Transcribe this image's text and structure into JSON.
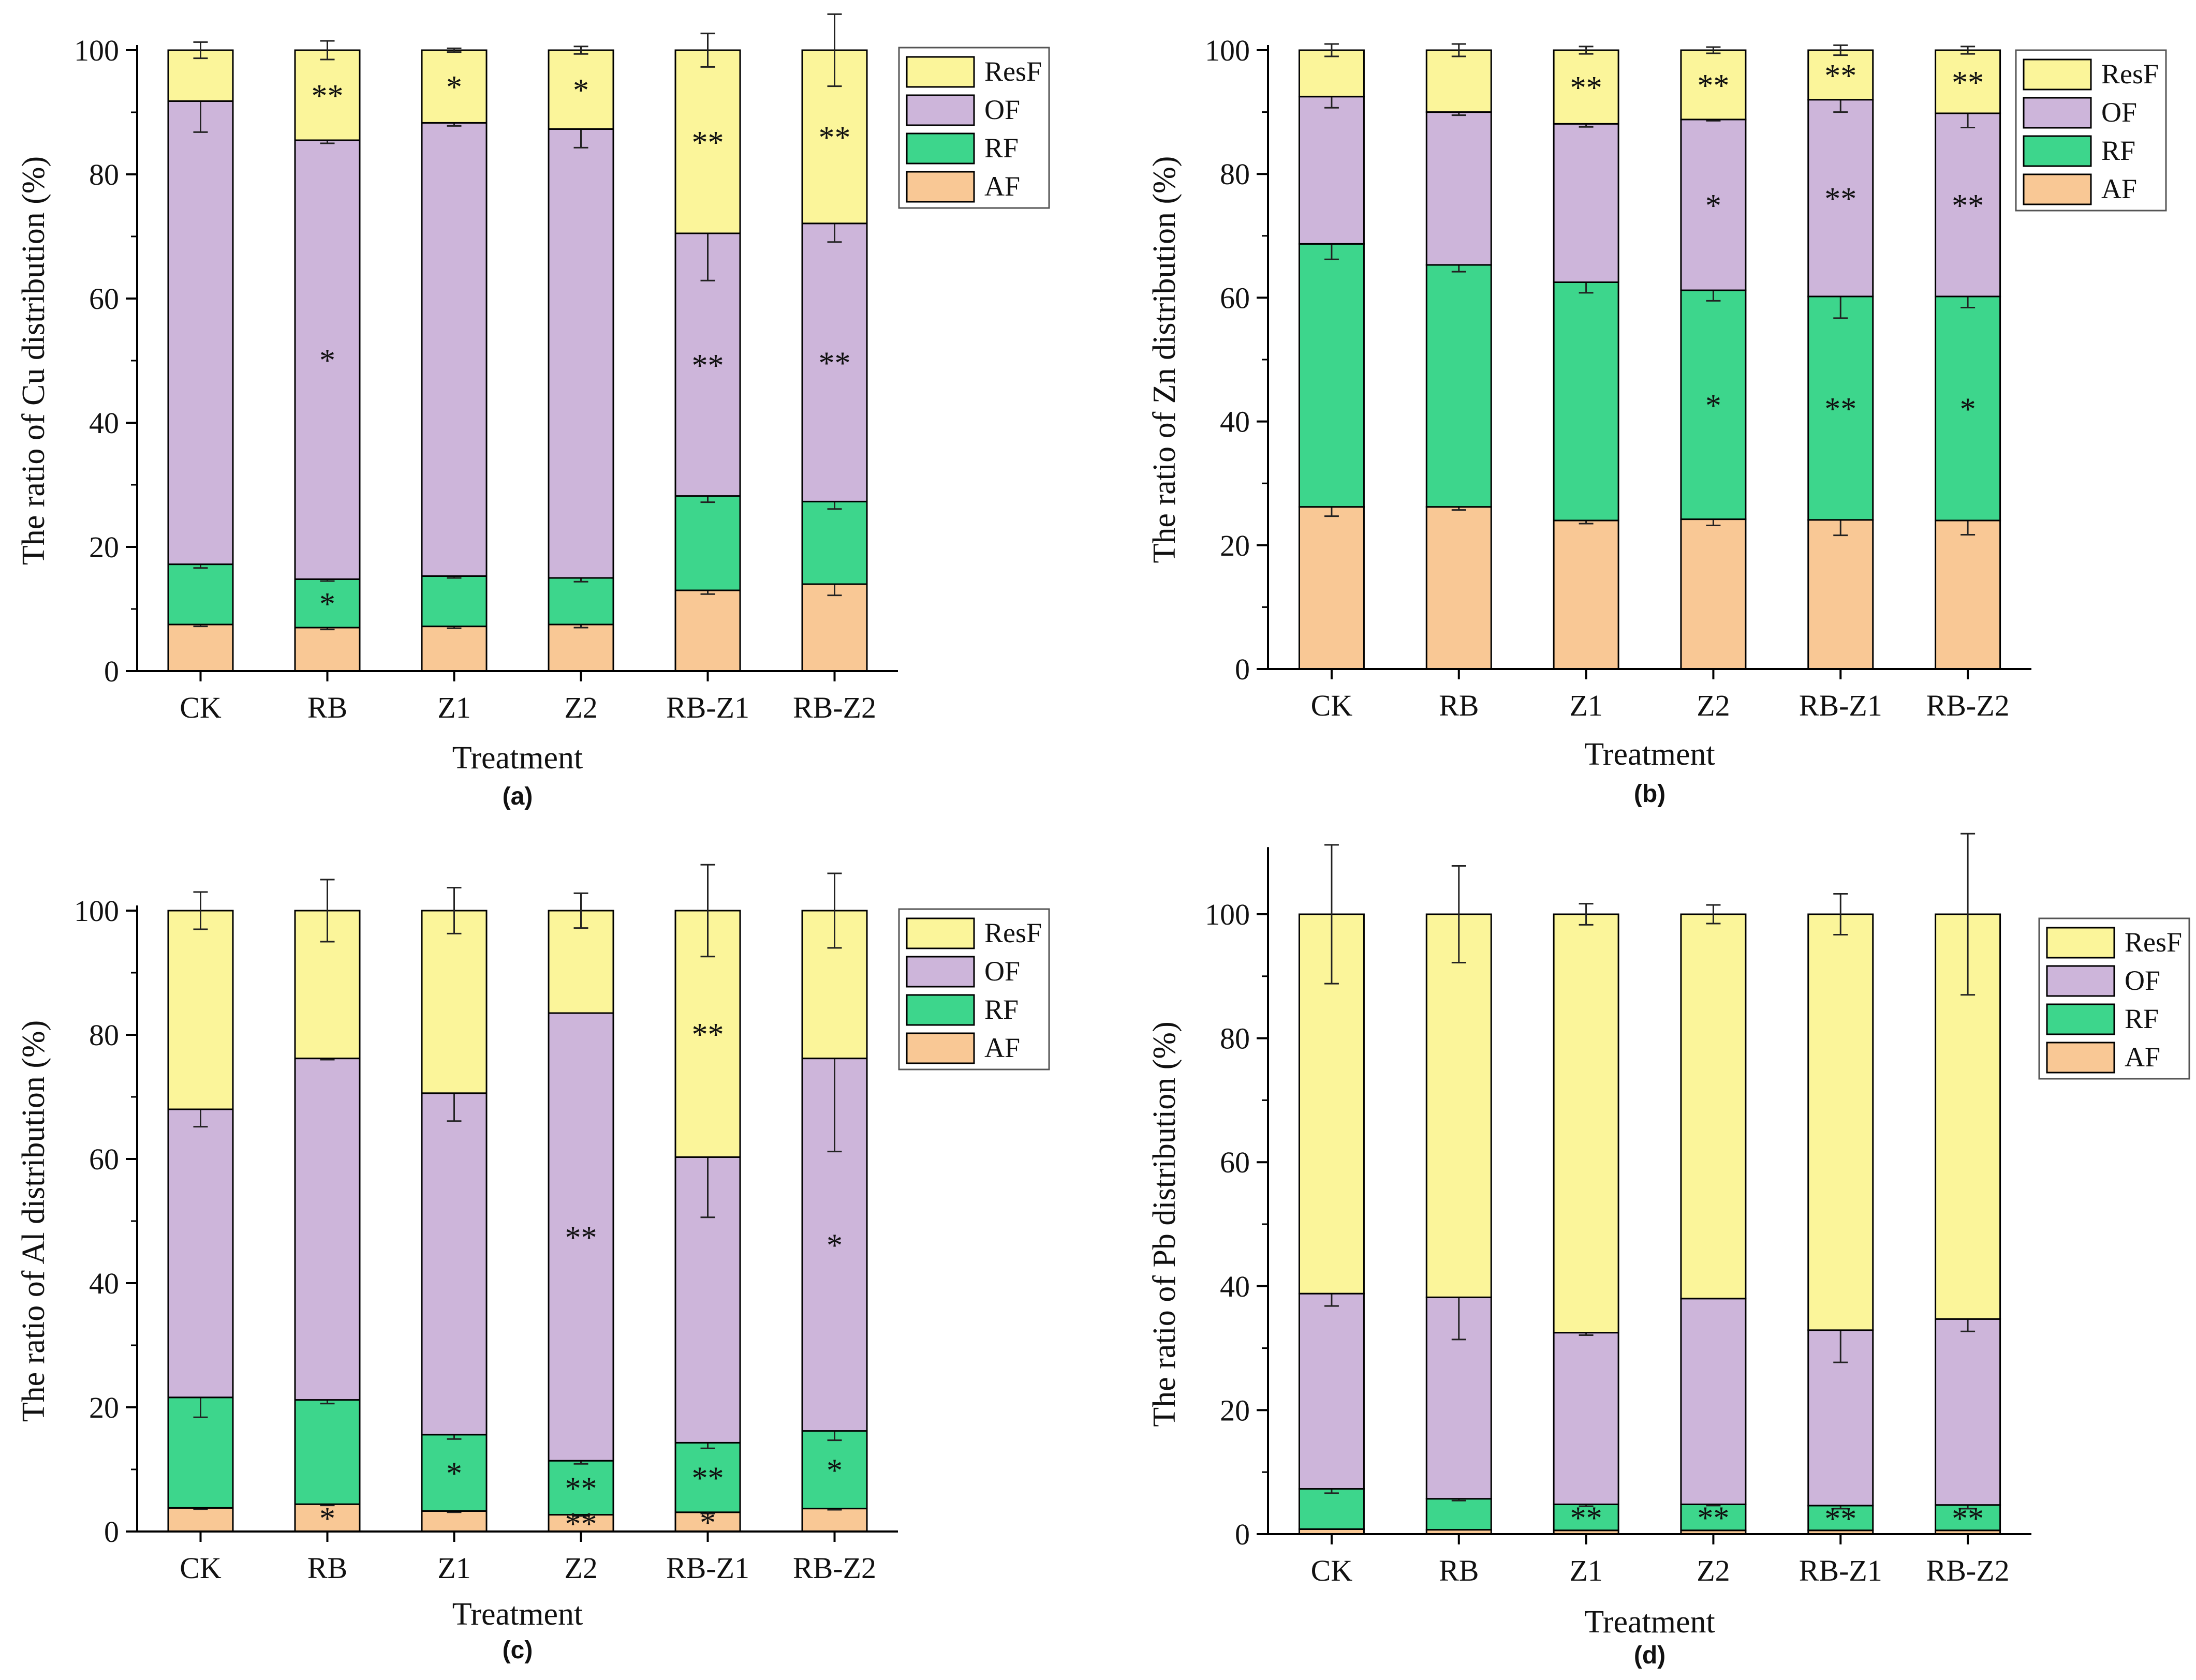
{
  "figure": {
    "type": "stacked-bar-panels",
    "categories": [
      "CK",
      "RB",
      "Z1",
      "Z2",
      "RB-Z1",
      "RB-Z2"
    ],
    "xlabel": "Treatment",
    "legend": [
      "ResF",
      "OF",
      "RF",
      "AF"
    ],
    "colors": {
      "AF": "#f9c895",
      "RF": "#3dd68c",
      "OF": "#cdb5da",
      "ResF": "#fbf59a",
      "axis": "#000000",
      "star_red": "#c0392b"
    }
  },
  "chart_data": [
    {
      "type": "bar",
      "stacked": true,
      "panel": "(a)",
      "ylabel": "The ratio of Cu distribution (%)",
      "xlabel": "Treatment",
      "ylim": [
        0,
        100
      ],
      "yticks": [
        "0",
        "20",
        "40",
        "60",
        "80",
        "100"
      ],
      "categories": [
        "CK",
        "RB",
        "Z1",
        "Z2",
        "RB-Z1",
        "RB-Z2"
      ],
      "series": [
        {
          "name": "AF",
          "values": [
            7.5,
            7.0,
            7.2,
            7.5,
            13.0,
            14.0
          ],
          "errors": [
            0.3,
            0.3,
            0.3,
            0.5,
            0.6,
            1.8
          ]
        },
        {
          "name": "RF",
          "values": [
            9.7,
            7.8,
            8.1,
            7.5,
            15.2,
            13.3
          ],
          "errors": [
            0.6,
            0.3,
            0.3,
            0.6,
            1.0,
            1.2
          ]
        },
        {
          "name": "OF",
          "values": [
            74.6,
            70.7,
            73.0,
            72.3,
            42.3,
            44.8
          ],
          "errors": [
            5.0,
            0.5,
            0.5,
            3.0,
            7.6,
            3.0
          ]
        },
        {
          "name": "ResF",
          "values": [
            8.2,
            14.5,
            11.7,
            12.7,
            29.5,
            27.9
          ],
          "errors": [
            1.3,
            1.5,
            0.3,
            0.6,
            2.7,
            5.8
          ]
        }
      ],
      "annotations": [
        {
          "cat": "RB",
          "series": "RF",
          "text": "*",
          "color": "black"
        },
        {
          "cat": "RB",
          "series": "OF",
          "text": "*",
          "color": "black"
        },
        {
          "cat": "RB",
          "series": "ResF",
          "text": "**",
          "color": "black"
        },
        {
          "cat": "Z1",
          "series": "ResF",
          "text": "*",
          "color": "black"
        },
        {
          "cat": "Z2",
          "series": "ResF",
          "text": "*",
          "color": "black"
        },
        {
          "cat": "RB-Z1",
          "series": "OF",
          "text": "**",
          "color": "black"
        },
        {
          "cat": "RB-Z1",
          "series": "ResF",
          "text": "**",
          "color": "black"
        },
        {
          "cat": "RB-Z2",
          "series": "OF",
          "text": "**",
          "color": "black"
        },
        {
          "cat": "RB-Z2",
          "series": "ResF",
          "text": "**",
          "color": "black"
        }
      ]
    },
    {
      "type": "bar",
      "stacked": true,
      "panel": "(b)",
      "ylabel": "The ratio of Zn distribution (%)",
      "xlabel": "Treatment",
      "ylim": [
        0,
        100
      ],
      "yticks": [
        "0",
        "20",
        "40",
        "60",
        "80",
        "100"
      ],
      "categories": [
        "CK",
        "RB",
        "Z1",
        "Z2",
        "RB-Z1",
        "RB-Z2"
      ],
      "series": [
        {
          "name": "AF",
          "values": [
            26.2,
            26.2,
            24.0,
            24.2,
            24.1,
            24.0
          ],
          "errors": [
            1.5,
            0.5,
            0.5,
            1.0,
            2.5,
            2.3
          ]
        },
        {
          "name": "RF",
          "values": [
            42.5,
            39.1,
            38.5,
            37.0,
            36.1,
            36.2
          ],
          "errors": [
            2.5,
            1.1,
            1.7,
            1.7,
            3.5,
            1.8
          ]
        },
        {
          "name": "OF",
          "values": [
            23.8,
            24.7,
            25.6,
            27.6,
            31.8,
            29.6
          ],
          "errors": [
            1.8,
            0.5,
            0.5,
            0.2,
            2.0,
            2.3
          ]
        },
        {
          "name": "ResF",
          "values": [
            7.5,
            10.0,
            11.9,
            11.2,
            8.0,
            10.2
          ],
          "errors": [
            1.0,
            1.0,
            0.6,
            0.5,
            0.8,
            0.6
          ]
        }
      ],
      "annotations": [
        {
          "cat": "Z1",
          "series": "ResF",
          "text": "**",
          "color": "black"
        },
        {
          "cat": "Z2",
          "series": "ResF",
          "text": "**",
          "color": "black"
        },
        {
          "cat": "Z2",
          "series": "OF",
          "text": "*",
          "color": "black"
        },
        {
          "cat": "Z2",
          "series": "RF",
          "text": "*",
          "color": "black"
        },
        {
          "cat": "RB-Z1",
          "series": "ResF",
          "text": "**",
          "color": "black"
        },
        {
          "cat": "RB-Z1",
          "series": "OF",
          "text": "**",
          "color": "black"
        },
        {
          "cat": "RB-Z1",
          "series": "RF",
          "text": "**",
          "color": "black"
        },
        {
          "cat": "RB-Z2",
          "series": "ResF",
          "text": "**",
          "color": "black"
        },
        {
          "cat": "RB-Z2",
          "series": "OF",
          "text": "**",
          "color": "black"
        },
        {
          "cat": "RB-Z2",
          "series": "RF",
          "text": "*",
          "color": "black"
        }
      ]
    },
    {
      "type": "bar",
      "stacked": true,
      "panel": "(c)",
      "ylabel": "The ratio of Al distribution (%)",
      "xlabel": "Treatment",
      "ylim": [
        0,
        100
      ],
      "yticks": [
        "0",
        "20",
        "40",
        "60",
        "80",
        "100"
      ],
      "categories": [
        "CK",
        "RB",
        "Z1",
        "Z2",
        "RB-Z1",
        "RB-Z2"
      ],
      "series": [
        {
          "name": "AF",
          "values": [
            3.8,
            4.4,
            3.3,
            2.7,
            3.1,
            3.7
          ],
          "errors": [
            0.2,
            0.2,
            0.2,
            0.2,
            0.2,
            0.2
          ]
        },
        {
          "name": "RF",
          "values": [
            17.8,
            16.8,
            12.3,
            8.7,
            11.2,
            12.5
          ],
          "errors": [
            3.2,
            0.6,
            0.7,
            0.5,
            0.9,
            1.5
          ]
        },
        {
          "name": "OF",
          "values": [
            46.4,
            55.0,
            55.0,
            72.1,
            46.0,
            60.0
          ],
          "errors": [
            2.8,
            0.2,
            4.5,
            0.0,
            9.7,
            15.0
          ]
        },
        {
          "name": "ResF",
          "values": [
            32.0,
            23.8,
            29.4,
            16.5,
            39.7,
            23.8
          ],
          "errors": [
            3.0,
            5.0,
            3.7,
            2.8,
            7.4,
            6.0
          ]
        }
      ],
      "annotations": [
        {
          "cat": "RB",
          "series": "AF",
          "text": "*",
          "color": "red"
        },
        {
          "cat": "Z1",
          "series": "RF",
          "text": "*",
          "color": "black"
        },
        {
          "cat": "Z2",
          "series": "AF",
          "text": "**",
          "color": "red"
        },
        {
          "cat": "Z2",
          "series": "RF",
          "text": "**",
          "color": "black"
        },
        {
          "cat": "Z2",
          "series": "OF",
          "text": "**",
          "color": "black"
        },
        {
          "cat": "RB-Z1",
          "series": "AF",
          "text": "*",
          "color": "red"
        },
        {
          "cat": "RB-Z1",
          "series": "RF",
          "text": "**",
          "color": "black"
        },
        {
          "cat": "RB-Z1",
          "series": "ResF",
          "text": "**",
          "color": "black"
        },
        {
          "cat": "RB-Z2",
          "series": "RF",
          "text": "*",
          "color": "black"
        },
        {
          "cat": "RB-Z2",
          "series": "OF",
          "text": "*",
          "color": "black"
        }
      ]
    },
    {
      "type": "bar",
      "stacked": true,
      "panel": "(d)",
      "ylabel": "The ratio of Pb distribution (%)",
      "xlabel": "Treatment",
      "ylim": [
        0,
        110
      ],
      "yticks": [
        "0",
        "20",
        "40",
        "60",
        "80",
        "100"
      ],
      "categories": [
        "CK",
        "RB",
        "Z1",
        "Z2",
        "RB-Z1",
        "RB-Z2"
      ],
      "series": [
        {
          "name": "AF",
          "values": [
            0.8,
            0.7,
            0.6,
            0.6,
            0.6,
            0.6
          ],
          "errors": [
            0.0,
            0.0,
            0.0,
            0.0,
            0.0,
            0.0
          ]
        },
        {
          "name": "RF",
          "values": [
            6.5,
            5.0,
            4.2,
            4.2,
            4.0,
            4.1
          ],
          "errors": [
            0.7,
            0.3,
            0.3,
            0.2,
            0.5,
            0.6
          ]
        },
        {
          "name": "OF",
          "values": [
            31.5,
            32.5,
            27.7,
            33.2,
            28.3,
            30.0
          ],
          "errors": [
            2.0,
            6.8,
            0.4,
            0.0,
            5.2,
            2.0
          ]
        },
        {
          "name": "ResF",
          "values": [
            61.2,
            61.8,
            67.5,
            62.0,
            67.1,
            65.3
          ],
          "errors": [
            11.2,
            7.8,
            1.7,
            1.5,
            3.3,
            13.0
          ]
        }
      ],
      "annotations": [
        {
          "cat": "Z1",
          "series": "RF",
          "text": "**",
          "color": "black"
        },
        {
          "cat": "Z2",
          "series": "RF",
          "text": "**",
          "color": "black"
        },
        {
          "cat": "RB-Z1",
          "series": "RF",
          "text": "**",
          "color": "black"
        },
        {
          "cat": "RB-Z2",
          "series": "RF",
          "text": "**",
          "color": "black"
        }
      ]
    }
  ]
}
